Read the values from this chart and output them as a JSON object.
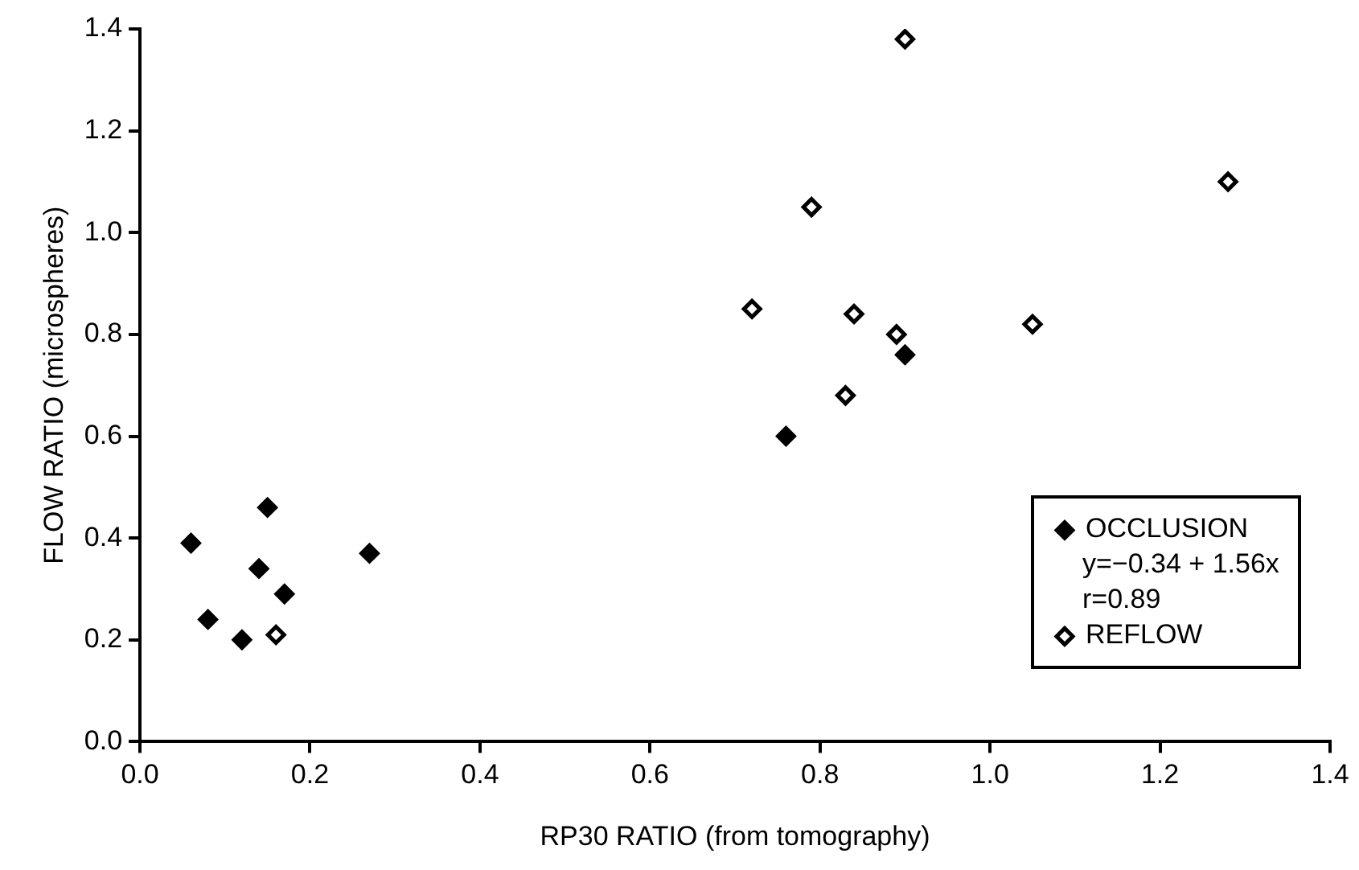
{
  "chart_data": {
    "type": "scatter",
    "xlabel": "RP30 RATIO (from tomography)",
    "ylabel": "FLOW RATIO (microspheres)",
    "xlim": [
      0,
      1.4
    ],
    "xticks": [
      {
        "value": 0,
        "label": "0.0"
      },
      {
        "value": 0.2,
        "label": "0.2"
      },
      {
        "value": 0.4,
        "label": "0.4"
      },
      {
        "value": 0.6,
        "label": "0.6"
      },
      {
        "value": 0.8,
        "label": "0.8"
      },
      {
        "value": 1,
        "label": "1.0"
      },
      {
        "value": 1.2,
        "label": "1.2"
      },
      {
        "value": 1.4,
        "label": "1.4"
      }
    ],
    "ylim": [
      0,
      1.4
    ],
    "yticks": [
      {
        "value": 0,
        "label": "0.0"
      },
      {
        "value": 0.2,
        "label": "0.2"
      },
      {
        "value": 0.4,
        "label": "0.4"
      },
      {
        "value": 0.6,
        "label": "0.6"
      },
      {
        "value": 0.8,
        "label": "0.8"
      },
      {
        "value": 1,
        "label": "1.0"
      },
      {
        "value": 1.2,
        "label": "1.2"
      },
      {
        "value": 1.4,
        "label": "1.4"
      }
    ],
    "grid": false,
    "legend": "bottom right",
    "marker": "diamond",
    "annotations": [
      "y=−0.34 + 1.56x",
      "r=0.89"
    ],
    "series": [
      {
        "name": "OCCLUSION",
        "color": "#000000",
        "x": [
          0.06,
          0.15,
          0.14,
          0.17,
          0.08,
          0.12,
          0.27,
          0.9,
          0.76
        ],
        "values": [
          0.39,
          0.46,
          0.34,
          0.29,
          0.24,
          0.2,
          0.37,
          0.76,
          0.6
        ]
      },
      {
        "name": "REFLOW",
        "color": "#ffffff",
        "x": [
          0.16,
          0.9,
          1.28,
          0.79,
          0.72,
          0.84,
          0.89,
          1.05,
          0.83
        ],
        "values": [
          0.21,
          1.38,
          1.1,
          1.05,
          0.85,
          0.84,
          0.8,
          0.82,
          0.68
        ]
      }
    ]
  }
}
